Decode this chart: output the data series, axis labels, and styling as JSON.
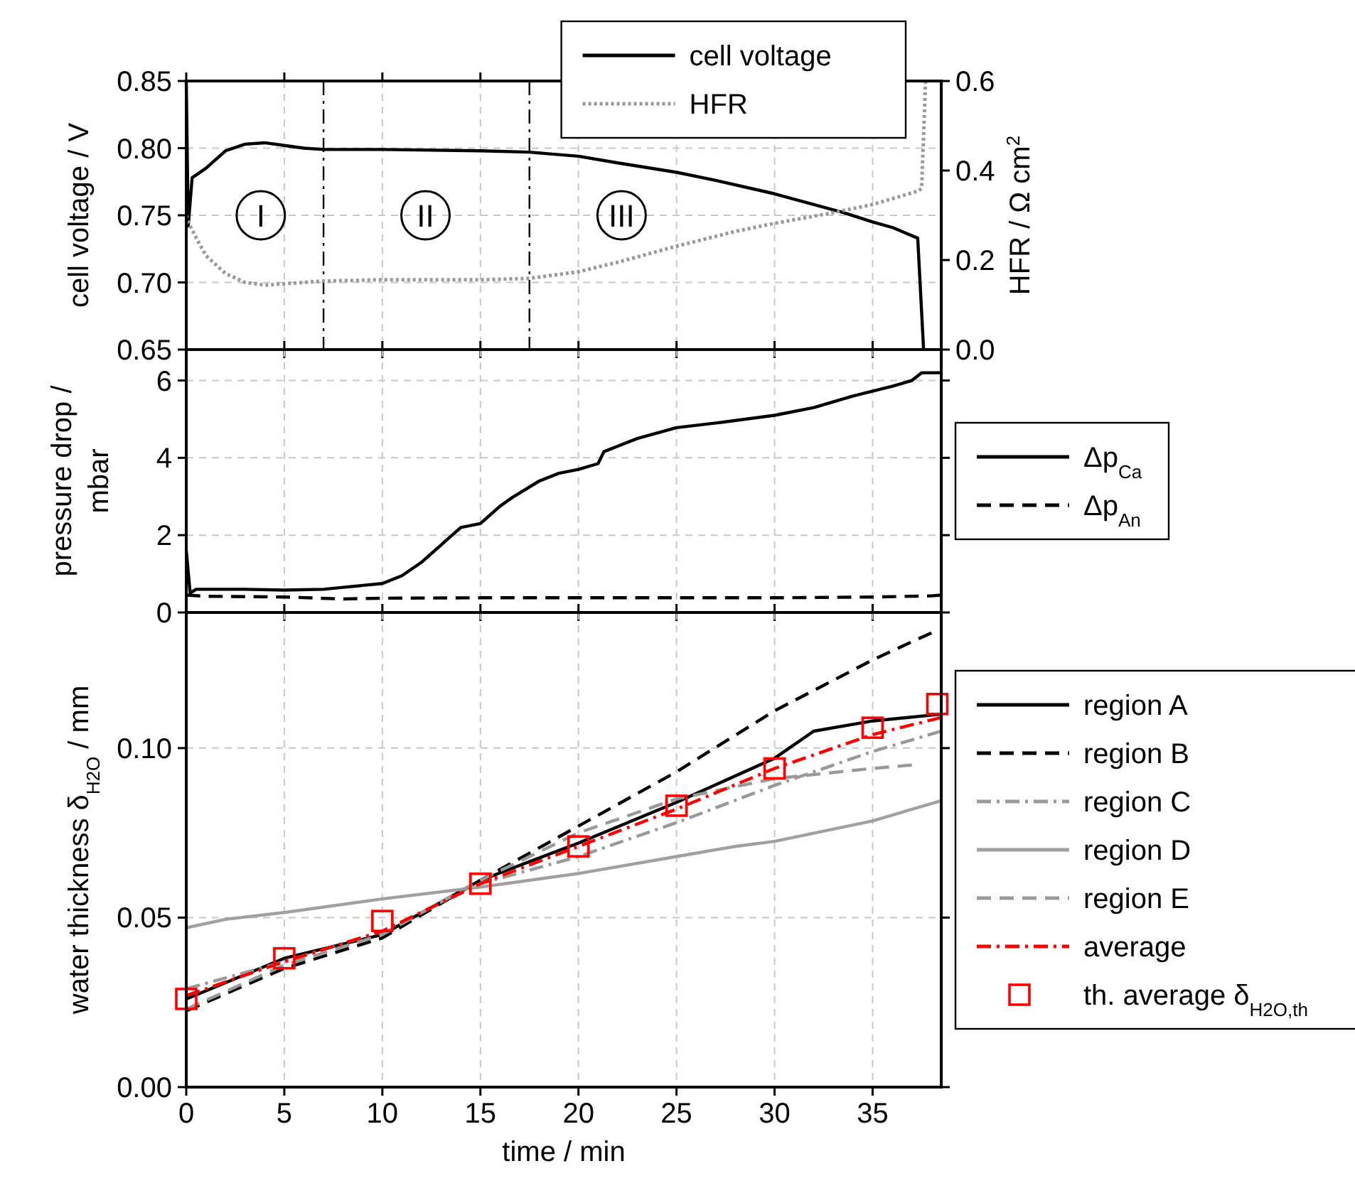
{
  "chart_data": [
    {
      "type": "line",
      "ylabel": "cell voltage / V",
      "y2label": "HFR / Ω cm$^{2}$",
      "xlim": [
        0,
        38.5
      ],
      "xticks": [
        0,
        5,
        10,
        15,
        20,
        25,
        30,
        35
      ],
      "ylim": [
        0.65,
        0.85
      ],
      "yticks": [
        {
          "value": 0.65,
          "label": "0.65"
        },
        {
          "value": 0.7,
          "label": "0.70"
        },
        {
          "value": 0.75,
          "label": "0.75"
        },
        {
          "value": 0.8,
          "label": "0.80"
        },
        {
          "value": 0.85,
          "label": "0.85"
        }
      ],
      "y2lim": [
        0,
        0.6
      ],
      "y2ticks": [
        {
          "value": 0,
          "label": "0.0"
        },
        {
          "value": 0.2,
          "label": "0.2"
        },
        {
          "value": 0.4,
          "label": "0.4"
        },
        {
          "value": 0.6,
          "label": "0.6"
        }
      ],
      "grid": true,
      "legend": "top right",
      "tick_labels": "y",
      "series": [
        {
          "name": "cell voltage",
          "color": "#000000",
          "line_style": "solid",
          "x": [
            0,
            0.1,
            0.3,
            1,
            2,
            3,
            4,
            5,
            6,
            7,
            10,
            15,
            17.5,
            20,
            22,
            25,
            27,
            30,
            32,
            33.5,
            35,
            36,
            37.3,
            37.6
          ],
          "values": [
            0.85,
            0.742,
            0.778,
            0.785,
            0.798,
            0.803,
            0.804,
            0.802,
            0.8,
            0.799,
            0.799,
            0.798,
            0.797,
            0.794,
            0.789,
            0.782,
            0.776,
            0.766,
            0.758,
            0.752,
            0.745,
            0.741,
            0.733,
            0.65
          ]
        },
        {
          "name": "HFR",
          "color": "#999999",
          "line_style": "dotted",
          "axis": "y2",
          "x": [
            0,
            0.1,
            0.5,
            1,
            2,
            3,
            4,
            5,
            7,
            10,
            15,
            17.5,
            20,
            22,
            25,
            28,
            30,
            33,
            35,
            37.3,
            37.5,
            37.7
          ],
          "values": [
            0.3,
            0.285,
            0.25,
            0.21,
            0.17,
            0.15,
            0.144,
            0.147,
            0.153,
            0.156,
            0.156,
            0.159,
            0.174,
            0.195,
            0.231,
            0.264,
            0.282,
            0.306,
            0.324,
            0.354,
            0.36,
            0.6
          ]
        }
      ],
      "ref_lines": [
        {
          "axis": "x",
          "value": 7,
          "line_style": "dashdot",
          "color": "#000000"
        },
        {
          "axis": "x",
          "value": 17.5,
          "line_style": "dashdot",
          "color": "#000000"
        }
      ],
      "annotations": [
        {
          "text": "I",
          "x": 3.8,
          "y": 0.75
        },
        {
          "text": "II",
          "x": 12.2,
          "y": 0.75
        },
        {
          "text": "III",
          "x": 22.2,
          "y": 0.75
        }
      ]
    },
    {
      "type": "line",
      "ylabel": "pressure drop / mbar",
      "xlim": [
        0,
        38.5
      ],
      "xticks": [
        0,
        5,
        10,
        15,
        20,
        25,
        30,
        35
      ],
      "ylim": [
        0,
        6.8
      ],
      "yticks": [
        0,
        2,
        4,
        6
      ],
      "grid": true,
      "legend": "right",
      "tick_labels": "y",
      "series": [
        {
          "name": "Δp$_{Ca}$",
          "color": "#000000",
          "line_style": "solid",
          "x": [
            0,
            0.2,
            0.5,
            1,
            3,
            5,
            7,
            8,
            9,
            10,
            11,
            12,
            13,
            14,
            15,
            16,
            16.7,
            18,
            19,
            20,
            21,
            21.3,
            22,
            23,
            25,
            27,
            30,
            32,
            34,
            36,
            37,
            37.5,
            38.5
          ],
          "values": [
            1.6,
            0.5,
            0.6,
            0.6,
            0.6,
            0.58,
            0.6,
            0.65,
            0.7,
            0.75,
            0.95,
            1.3,
            1.75,
            2.2,
            2.3,
            2.75,
            3.0,
            3.4,
            3.6,
            3.7,
            3.85,
            4.16,
            4.3,
            4.5,
            4.78,
            4.9,
            5.1,
            5.3,
            5.6,
            5.85,
            6.0,
            6.2,
            6.2
          ]
        },
        {
          "name": "Δp$_{An}$",
          "color": "#000000",
          "line_style": "dashed",
          "x": [
            0,
            1,
            5,
            8,
            10,
            15,
            20,
            25,
            30,
            35,
            38,
            38.5
          ],
          "values": [
            0.45,
            0.42,
            0.4,
            0.35,
            0.37,
            0.38,
            0.38,
            0.38,
            0.38,
            0.4,
            0.43,
            0.45
          ]
        }
      ]
    },
    {
      "type": "line",
      "xlabel": "time / min",
      "ylabel": "water thickness δ$_{H2O}$ / mm",
      "xlim": [
        0,
        38.5
      ],
      "xticks": [
        0,
        5,
        10,
        15,
        20,
        25,
        30,
        35
      ],
      "ylim": [
        0,
        0.14
      ],
      "yticks": [
        {
          "value": 0,
          "label": "0.00"
        },
        {
          "value": 0.05,
          "label": "0.05"
        },
        {
          "value": 0.1,
          "label": "0.10"
        }
      ],
      "grid": true,
      "legend": "right",
      "series": [
        {
          "name": "region A",
          "color": "#000000",
          "line_style": "solid",
          "x": [
            0,
            5,
            10,
            15,
            20,
            25,
            30,
            32,
            35,
            38.5
          ],
          "values": [
            0.026,
            0.038,
            0.045,
            0.061,
            0.072,
            0.084,
            0.097,
            0.105,
            0.108,
            0.11
          ]
        },
        {
          "name": "region B",
          "color": "#000000",
          "line_style": "dashed",
          "x": [
            0,
            5,
            10,
            15,
            20,
            25,
            30,
            35,
            38
          ],
          "values": [
            0.0225,
            0.035,
            0.044,
            0.061,
            0.077,
            0.093,
            0.111,
            0.126,
            0.134
          ]
        },
        {
          "name": "region C",
          "color": "#999999",
          "line_style": "dashdot",
          "x": [
            0,
            5,
            10,
            15,
            20,
            25,
            30,
            35,
            38.5
          ],
          "values": [
            0.029,
            0.037,
            0.046,
            0.06,
            0.068,
            0.078,
            0.089,
            0.099,
            0.105
          ]
        },
        {
          "name": "region D",
          "color": "#a0a0a0",
          "line_style": "solid",
          "x": [
            0,
            2,
            5,
            10,
            15,
            20,
            25,
            28,
            30,
            35,
            38.5
          ],
          "values": [
            0.047,
            0.0495,
            0.0515,
            0.0555,
            0.059,
            0.063,
            0.068,
            0.071,
            0.0725,
            0.0785,
            0.0845
          ]
        },
        {
          "name": "region E",
          "color": "#999999",
          "line_style": "dashed",
          "x": [
            0,
            5,
            10,
            15,
            20,
            25,
            30,
            35,
            37
          ],
          "values": [
            0.023,
            0.036,
            0.045,
            0.061,
            0.075,
            0.085,
            0.091,
            0.094,
            0.095
          ]
        },
        {
          "name": "average",
          "color": "#ff0000",
          "line_style": "dashdot",
          "x": [
            0,
            5,
            10,
            15,
            20,
            25,
            30,
            35,
            38.5
          ],
          "values": [
            0.027,
            0.037,
            0.046,
            0.06,
            0.071,
            0.082,
            0.094,
            0.104,
            0.109
          ]
        },
        {
          "name": "th. average δ$_{H2O,th}$",
          "color": "#ff0000",
          "type": "scatter",
          "marker": "square",
          "x": [
            0,
            5,
            10,
            15,
            20,
            25,
            30,
            35,
            38.3
          ],
          "values": [
            0.026,
            0.038,
            0.049,
            0.06,
            0.071,
            0.083,
            0.094,
            0.106,
            0.113
          ]
        }
      ]
    }
  ]
}
